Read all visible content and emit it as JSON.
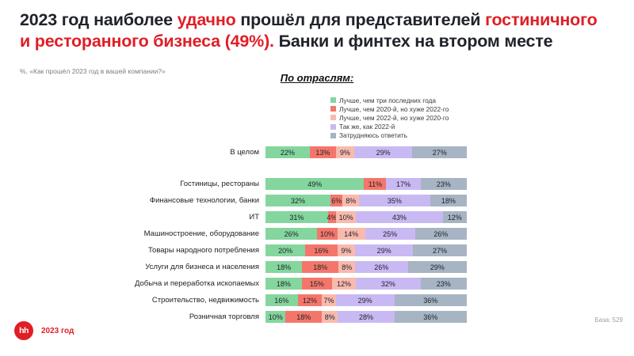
{
  "header": {
    "title_segments": [
      {
        "text": "2023 год наиболее ",
        "cls": "t-dark"
      },
      {
        "text": "удачно",
        "cls": "t-red"
      },
      {
        "text": " прошёл для представителей ",
        "cls": "t-dark"
      },
      {
        "text": "гостиничного",
        "cls": "t-red"
      },
      {
        "text": "и ресторанного бизнеса (49%).",
        "cls": "t-red"
      },
      {
        "text": " Банки и финтех на втором месте",
        "cls": "t-dark"
      }
    ],
    "subtitle": "%, «Как прошёл 2023 год в вашей компании?»"
  },
  "chart_data": {
    "type": "bar",
    "orientation": "horizontal-stacked",
    "title": "По отраслям:",
    "unit": "%",
    "xlim": [
      0,
      100
    ],
    "grid": false,
    "legend_position": "top",
    "legend": [
      {
        "label": "Лучше, чем три последних года",
        "color": "#84D69E"
      },
      {
        "label": "Лучше, чем 2020-й, но хуже 2022-го",
        "color": "#F4766B"
      },
      {
        "label": "Лучше, чем 2022-й, но хуже 2020-го",
        "color": "#F9BAAE"
      },
      {
        "label": "Так же, как 2022-й",
        "color": "#C9B9F3"
      },
      {
        "label": "Затрудняюсь ответить",
        "color": "#A6B4C3"
      }
    ],
    "rows": [
      {
        "label": "В целом",
        "values": [
          22,
          13,
          9,
          29,
          27
        ],
        "gap_after": true
      },
      {
        "label": "Гостиницы, рестораны",
        "values": [
          49,
          11,
          0,
          17,
          23
        ]
      },
      {
        "label": "Финансовые технологии, банки",
        "values": [
          32,
          6,
          8,
          35,
          18
        ]
      },
      {
        "label": "ИТ",
        "values": [
          31,
          4,
          10,
          43,
          12
        ]
      },
      {
        "label": "Машиностроение, оборудование",
        "values": [
          26,
          10,
          14,
          25,
          26
        ]
      },
      {
        "label": "Товары народного потребления",
        "values": [
          20,
          16,
          9,
          29,
          27
        ]
      },
      {
        "label": "Услуги для бизнеса и населения",
        "values": [
          18,
          18,
          8,
          26,
          29
        ]
      },
      {
        "label": "Добыча и переработка ископаемых",
        "values": [
          18,
          15,
          12,
          32,
          23
        ]
      },
      {
        "label": "Строительство, недвижимость",
        "values": [
          16,
          12,
          7,
          29,
          36
        ]
      },
      {
        "label": "Розничная торговля",
        "values": [
          10,
          18,
          8,
          28,
          36
        ]
      }
    ]
  },
  "footer": {
    "logo_text": "hh",
    "year_label": "2023 год",
    "base_note": "База: 529"
  },
  "colors": {
    "accent_red": "#E01E26",
    "text_dark": "#20232B"
  }
}
